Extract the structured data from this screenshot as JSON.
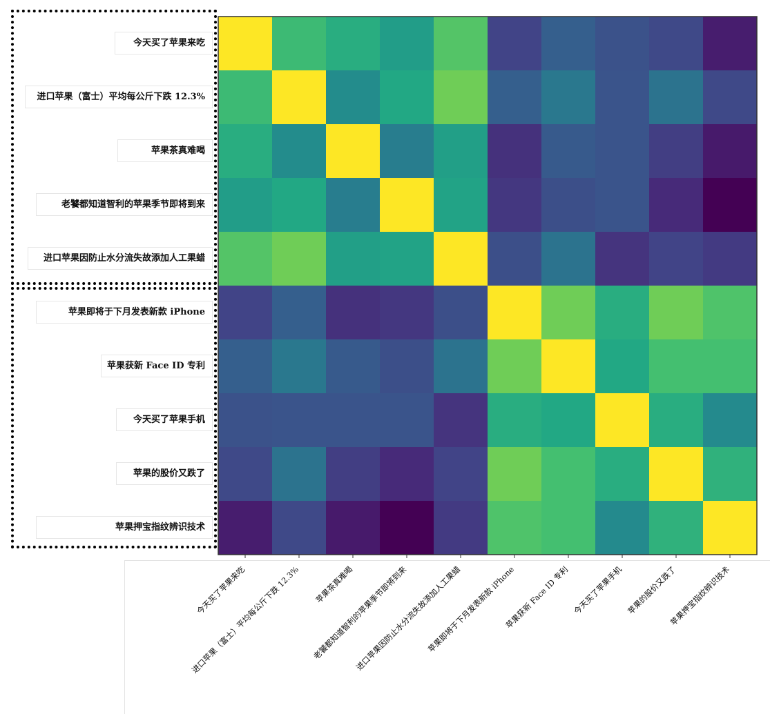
{
  "chart_data": {
    "type": "heatmap",
    "title": "",
    "colormap": "viridis",
    "value_range": [
      0,
      1
    ],
    "row_labels": [
      "今天买了苹果来吃",
      "进口苹果（富士）平均每公斤下跌 12.3%",
      "苹果茶真难喝",
      "老饕都知道智利的苹果季节即将到来",
      "进口苹果因防止水分流失故添加人工果蜡",
      "苹果即将于下月发表新款 iPhone",
      "苹果获新 Face ID 专利",
      "今天买了苹果手机",
      "苹果的股价又跌了",
      "苹果押宝指纹辨识技术"
    ],
    "col_labels": [
      "今天买了苹果来吃",
      "进口苹果（富士）平均每公斤下跌 12.3%",
      "苹果茶真难喝",
      "老饕都知道智利的苹果季节即将到来",
      "进口苹果因防止水分流失故添加人工果蜡",
      "苹果即将于下月发表新款 iPhone",
      "苹果获新 Face ID 专利",
      "今天买了苹果手机",
      "苹果的股价又跌了",
      "苹果押宝指纹辨识技术"
    ],
    "matrix": [
      [
        1.0,
        0.68,
        0.62,
        0.55,
        0.73,
        0.2,
        0.3,
        0.25,
        0.22,
        0.08
      ],
      [
        0.68,
        1.0,
        0.48,
        0.6,
        0.78,
        0.3,
        0.4,
        0.26,
        0.38,
        0.22
      ],
      [
        0.62,
        0.48,
        1.0,
        0.42,
        0.56,
        0.14,
        0.28,
        0.26,
        0.18,
        0.07
      ],
      [
        0.55,
        0.6,
        0.42,
        1.0,
        0.58,
        0.16,
        0.24,
        0.26,
        0.12,
        0.0
      ],
      [
        0.73,
        0.78,
        0.56,
        0.58,
        1.0,
        0.24,
        0.38,
        0.15,
        0.2,
        0.17
      ],
      [
        0.2,
        0.3,
        0.14,
        0.16,
        0.24,
        1.0,
        0.78,
        0.62,
        0.78,
        0.72
      ],
      [
        0.3,
        0.4,
        0.28,
        0.24,
        0.38,
        0.78,
        1.0,
        0.6,
        0.7,
        0.7
      ],
      [
        0.25,
        0.26,
        0.26,
        0.26,
        0.15,
        0.62,
        0.6,
        1.0,
        0.62,
        0.47
      ],
      [
        0.22,
        0.38,
        0.18,
        0.12,
        0.2,
        0.78,
        0.7,
        0.62,
        1.0,
        0.64
      ],
      [
        0.08,
        0.22,
        0.07,
        0.0,
        0.17,
        0.72,
        0.7,
        0.47,
        0.64,
        1.0
      ]
    ],
    "grid": false,
    "legend": "none",
    "groups": [
      {
        "rows": [
          0,
          4
        ],
        "style": "dotted-box"
      },
      {
        "rows": [
          5,
          9
        ],
        "style": "dotted-box"
      }
    ]
  }
}
